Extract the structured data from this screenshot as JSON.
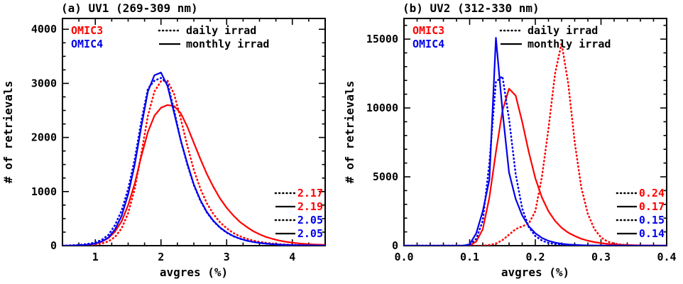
{
  "figure": {
    "background": "#ffffff",
    "text_color": "#000000",
    "colors": {
      "omic3": "#ff0000",
      "omic4": "#0000ee"
    }
  },
  "chart_data": [
    {
      "type": "line",
      "title": "(a) UV1 (269-309 nm)",
      "xlabel": "avgres (%)",
      "ylabel": "# of retrievals",
      "xlim": [
        0.5,
        4.5
      ],
      "ylim": [
        0,
        4200
      ],
      "xticks": [
        1,
        2,
        3,
        4
      ],
      "xtick_labels": [
        "1",
        "2",
        "3",
        "4"
      ],
      "yticks": [
        0,
        1000,
        2000,
        3000,
        4000
      ],
      "ytick_labels": [
        "0",
        "1000",
        "2000",
        "3000",
        "4000"
      ],
      "x_minor_step": 0.25,
      "y_minor_step": 250,
      "grid": false,
      "x_start": 0.5,
      "x_step": 0.1,
      "series": [
        {
          "name": "OMIC3 daily irrad",
          "color": "#ff0000",
          "style": "dotted",
          "values": [
            0,
            0,
            0,
            5,
            10,
            20,
            40,
            80,
            160,
            320,
            600,
            1050,
            1700,
            2400,
            2850,
            3040,
            3050,
            2800,
            2350,
            1850,
            1400,
            1050,
            780,
            580,
            430,
            320,
            235,
            175,
            130,
            95,
            70,
            52,
            38,
            28,
            21,
            15,
            11,
            8,
            6,
            5,
            3
          ]
        },
        {
          "name": "OMIC3 monthly irrad",
          "color": "#ff0000",
          "style": "solid",
          "values": [
            0,
            0,
            5,
            10,
            20,
            40,
            75,
            140,
            260,
            450,
            750,
            1150,
            1650,
            2100,
            2400,
            2550,
            2600,
            2580,
            2450,
            2200,
            1900,
            1600,
            1320,
            1080,
            870,
            700,
            560,
            440,
            350,
            270,
            210,
            160,
            125,
            95,
            72,
            55,
            42,
            32,
            24,
            18,
            14
          ]
        },
        {
          "name": "OMIC4 daily irrad",
          "color": "#0000ee",
          "style": "dotted",
          "values": [
            0,
            5,
            10,
            20,
            35,
            60,
            110,
            200,
            380,
            650,
            1050,
            1600,
            2300,
            2900,
            3050,
            3100,
            3000,
            2500,
            1950,
            1500,
            1120,
            830,
            610,
            450,
            330,
            240,
            175,
            128,
            94,
            69,
            51,
            37,
            27,
            20,
            15,
            11,
            8,
            6,
            4,
            3,
            2
          ]
        },
        {
          "name": "OMIC4 monthly irrad",
          "color": "#0000ee",
          "style": "solid",
          "values": [
            0,
            0,
            5,
            10,
            20,
            40,
            80,
            150,
            300,
            550,
            950,
            1500,
            2200,
            2850,
            3150,
            3200,
            2950,
            2450,
            1950,
            1520,
            1130,
            840,
            620,
            455,
            335,
            245,
            178,
            130,
            95,
            70,
            51,
            38,
            28,
            20,
            15,
            11,
            8,
            6,
            4,
            3,
            2
          ]
        }
      ],
      "legend": {
        "models": [
          {
            "label": "OMIC3",
            "color": "#ff0000"
          },
          {
            "label": "OMIC4",
            "color": "#0000ee"
          }
        ],
        "styles": [
          {
            "label": "daily irrad",
            "style": "dotted"
          },
          {
            "label": "monthly irrad",
            "style": "solid"
          }
        ]
      },
      "stats": [
        {
          "style": "dotted",
          "color": "#ff0000",
          "value": "2.17"
        },
        {
          "style": "solid",
          "color": "#ff0000",
          "value": "2.19"
        },
        {
          "style": "dotted",
          "color": "#0000ee",
          "value": "2.05"
        },
        {
          "style": "solid",
          "color": "#0000ee",
          "value": "2.05"
        }
      ]
    },
    {
      "type": "line",
      "title": "(b) UV2 (312-330 nm)",
      "xlabel": "avgres (%)",
      "ylabel": "# of retrievals",
      "xlim": [
        0.0,
        0.4
      ],
      "ylim": [
        0,
        16500
      ],
      "xticks": [
        0.0,
        0.1,
        0.2,
        0.3,
        0.4
      ],
      "xtick_labels": [
        "0.0",
        "0.1",
        "0.2",
        "0.3",
        "0.4"
      ],
      "yticks": [
        0,
        5000,
        10000,
        15000
      ],
      "ytick_labels": [
        "0",
        "5000",
        "10000",
        "15000"
      ],
      "x_minor_step": 0.02,
      "y_minor_step": 1000,
      "grid": false,
      "x_start": 0.0,
      "x_step": 0.01,
      "series": [
        {
          "name": "OMIC3 daily irrad",
          "color": "#ff0000",
          "style": "dotted",
          "values": [
            0,
            0,
            0,
            0,
            0,
            0,
            0,
            0,
            0,
            0,
            0,
            0,
            0,
            50,
            150,
            400,
            800,
            1200,
            1400,
            1600,
            2500,
            5000,
            8500,
            12500,
            14700,
            11800,
            7500,
            4200,
            2300,
            1200,
            600,
            300,
            150,
            80,
            40,
            20,
            10,
            5,
            3,
            2,
            1
          ]
        },
        {
          "name": "OMIC3 monthly irrad",
          "color": "#ff0000",
          "style": "solid",
          "values": [
            0,
            0,
            0,
            0,
            0,
            0,
            0,
            0,
            0,
            0,
            0,
            300,
            1200,
            3500,
            6800,
            9800,
            11400,
            10900,
            9000,
            6800,
            4900,
            3500,
            2500,
            1800,
            1300,
            950,
            700,
            500,
            360,
            260,
            185,
            130,
            90,
            65,
            45,
            32,
            22,
            15,
            10,
            7,
            5
          ]
        },
        {
          "name": "OMIC4 daily irrad",
          "color": "#0000ee",
          "style": "dotted",
          "values": [
            0,
            0,
            0,
            0,
            0,
            0,
            0,
            0,
            0,
            0,
            50,
            500,
            1800,
            6000,
            11900,
            12300,
            9200,
            5200,
            2700,
            1350,
            700,
            370,
            200,
            110,
            65,
            38,
            22,
            13,
            8,
            5,
            3,
            2,
            1,
            1,
            0,
            0,
            0,
            0,
            0,
            0,
            0
          ]
        },
        {
          "name": "OMIC4 monthly irrad",
          "color": "#0000ee",
          "style": "solid",
          "values": [
            0,
            0,
            0,
            0,
            0,
            0,
            0,
            0,
            0,
            0,
            100,
            900,
            2500,
            4800,
            15100,
            9800,
            5300,
            3400,
            2200,
            1400,
            900,
            560,
            350,
            220,
            140,
            90,
            55,
            35,
            22,
            14,
            9,
            6,
            4,
            3,
            2,
            1,
            1,
            0,
            0,
            0,
            0
          ]
        }
      ],
      "legend": {
        "models": [
          {
            "label": "OMIC3",
            "color": "#ff0000"
          },
          {
            "label": "OMIC4",
            "color": "#0000ee"
          }
        ],
        "styles": [
          {
            "label": "daily irrad",
            "style": "dotted"
          },
          {
            "label": "monthly irrad",
            "style": "solid"
          }
        ]
      },
      "stats": [
        {
          "style": "dotted",
          "color": "#ff0000",
          "value": "0.24"
        },
        {
          "style": "solid",
          "color": "#ff0000",
          "value": "0.17"
        },
        {
          "style": "dotted",
          "color": "#0000ee",
          "value": "0.15"
        },
        {
          "style": "solid",
          "color": "#0000ee",
          "value": "0.14"
        }
      ]
    }
  ]
}
